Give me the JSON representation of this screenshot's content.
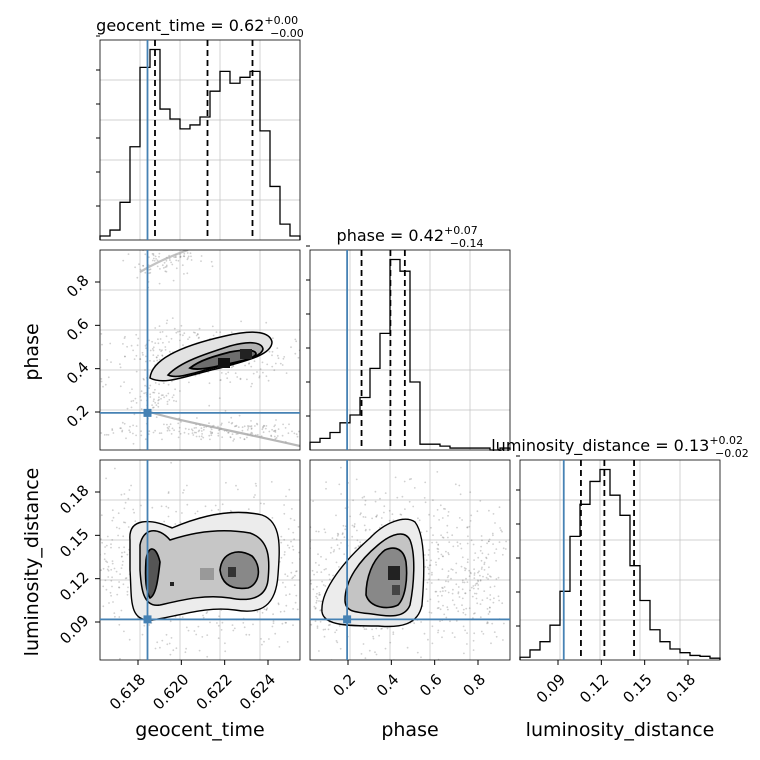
{
  "colors": {
    "truth": "#4682b4",
    "hist": "#000000",
    "grid": "#c0c0c0",
    "scatter": "#777777"
  },
  "chart_data": [
    {
      "type": "histogram",
      "panel": "geocent_time",
      "title": "geocent_time = 0.62",
      "title_sup": "+0.00",
      "title_sub": "−0.00",
      "xlim": [
        0.6165,
        0.6245
      ],
      "bins": [
        0.6165,
        0.6169,
        0.6173,
        0.6177,
        0.6181,
        0.6185,
        0.6189,
        0.6193,
        0.6197,
        0.6201,
        0.6205,
        0.6209,
        0.6213,
        0.6217,
        0.6221,
        0.6225,
        0.6229,
        0.6233,
        0.6237,
        0.6241,
        0.6245
      ],
      "counts": [
        2,
        5,
        19,
        47,
        87,
        96,
        66,
        61,
        56,
        58,
        62,
        75,
        85,
        79,
        82,
        85,
        55,
        27,
        8,
        2
      ],
      "quantiles": [
        0.6187,
        0.6208,
        0.6226
      ],
      "truth": 0.6184,
      "show_xticklabels": false
    },
    {
      "type": "scatter-density",
      "panel": "phase-vs-geocent_time",
      "x": "geocent_time",
      "y": "phase",
      "xlim": [
        0.6165,
        0.6245
      ],
      "ylim": [
        0.03,
        1.0
      ],
      "yticks": [
        "0.2",
        "0.4",
        "0.6",
        "0.8"
      ],
      "ylabel": "phase",
      "truth": [
        0.6184,
        0.21
      ],
      "show_xticklabels": false
    },
    {
      "type": "histogram",
      "panel": "phase",
      "title": "phase = 0.42",
      "title_sup": "+0.07",
      "title_sub": "−0.14",
      "xlim": [
        0.03,
        1.0
      ],
      "bins": [
        0.03,
        0.0785,
        0.127,
        0.1755,
        0.224,
        0.2725,
        0.321,
        0.3695,
        0.418,
        0.4665,
        0.515,
        0.5635,
        0.612,
        0.6605,
        0.709,
        0.7575,
        0.806,
        0.8545,
        0.903,
        0.9515,
        1.0
      ],
      "counts": [
        4,
        6,
        9,
        14,
        18,
        27,
        42,
        60,
        98,
        92,
        35,
        3,
        3,
        2,
        1,
        1,
        1,
        1,
        0,
        1
      ],
      "quantiles": [
        0.28,
        0.42,
        0.49
      ],
      "truth": 0.21,
      "show_xticklabels": false
    },
    {
      "type": "scatter-density",
      "panel": "luminosity_distance-vs-geocent_time",
      "x": "geocent_time",
      "y": "luminosity_distance",
      "xlim": [
        0.6165,
        0.6245
      ],
      "ylim": [
        0.072,
        0.2
      ],
      "xticks": [
        "0.618",
        "0.620",
        "0.622",
        "0.624"
      ],
      "yticks": [
        "0.09",
        "0.12",
        "0.15",
        "0.18"
      ],
      "xlabel": "geocent_time",
      "ylabel": "luminosity_distance",
      "truth": [
        0.6184,
        0.098
      ]
    },
    {
      "type": "scatter-density",
      "panel": "luminosity_distance-vs-phase",
      "x": "phase",
      "y": "luminosity_distance",
      "xlim": [
        0.03,
        1.0
      ],
      "ylim": [
        0.072,
        0.2
      ],
      "xticks": [
        "0.2",
        "0.4",
        "0.6",
        "0.8"
      ],
      "xlabel": "phase",
      "truth": [
        0.21,
        0.098
      ]
    },
    {
      "type": "histogram",
      "panel": "luminosity_distance",
      "title": "luminosity_distance = 0.13",
      "title_sup": "+0.02",
      "title_sub": "−0.02",
      "xlim": [
        0.072,
        0.2
      ],
      "bins": [
        0.072,
        0.0784,
        0.0848,
        0.0912,
        0.0976,
        0.104,
        0.1104,
        0.1168,
        0.1232,
        0.1296,
        0.136,
        0.1424,
        0.1488,
        0.1552,
        0.1616,
        0.168,
        0.1744,
        0.1808,
        0.1872,
        0.1936,
        0.2
      ],
      "counts": [
        3,
        11,
        20,
        38,
        75,
        135,
        170,
        195,
        208,
        180,
        158,
        103,
        65,
        33,
        20,
        12,
        8,
        5,
        4,
        2
      ],
      "quantiles": [
        0.111,
        0.126,
        0.145
      ],
      "truth": 0.1,
      "xticks": [
        "0.09",
        "0.12",
        "0.15",
        "0.18"
      ],
      "xlabel": "luminosity_distance"
    }
  ]
}
